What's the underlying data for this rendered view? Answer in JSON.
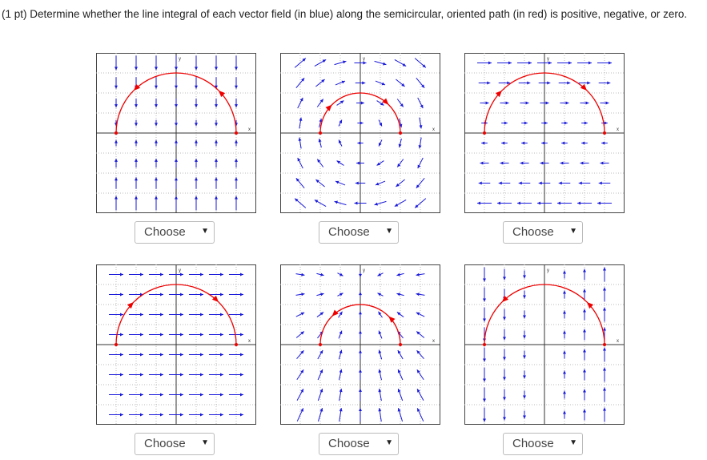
{
  "question": "(1 pt) Determine whether the line integral of each vector field (in blue) along the semicircular, oriented path (in red) is positive, negative, or zero.",
  "panels": [
    {
      "x_label": "x",
      "y_label": "y",
      "select": "Choose",
      "select_arrow": "▼"
    },
    {
      "x_label": "x",
      "y_label": "y",
      "select": "Choose",
      "select_arrow": "▼"
    },
    {
      "x_label": "x",
      "y_label": "y",
      "select": "Choose",
      "select_arrow": "▼"
    },
    {
      "x_label": "x",
      "y_label": "y",
      "select": "Choose",
      "select_arrow": "▼"
    },
    {
      "x_label": "x",
      "y_label": "y",
      "select": "Choose",
      "select_arrow": "▼"
    },
    {
      "x_label": "x",
      "y_label": "y",
      "select": "Choose",
      "select_arrow": "▼"
    }
  ]
}
